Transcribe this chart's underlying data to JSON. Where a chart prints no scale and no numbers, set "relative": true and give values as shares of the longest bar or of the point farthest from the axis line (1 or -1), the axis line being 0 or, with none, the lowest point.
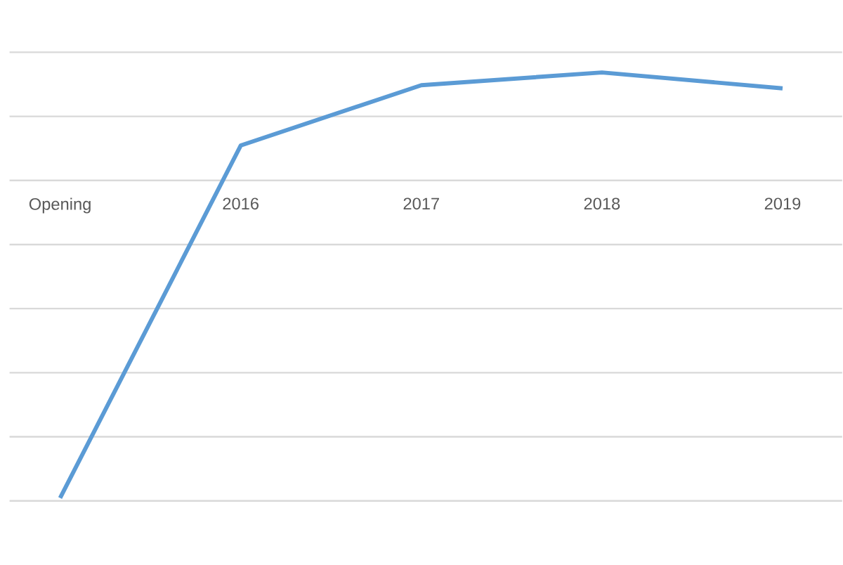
{
  "chart_data": {
    "type": "line",
    "relative": true,
    "grid": "y",
    "categories": [
      "Opening",
      "2016",
      "2017",
      "2018",
      "2019"
    ],
    "series": [
      {
        "color": "#5b9bd5",
        "values": [
          -1,
          0.11,
          0.3,
          0.34,
          0.29
        ]
      }
    ]
  }
}
